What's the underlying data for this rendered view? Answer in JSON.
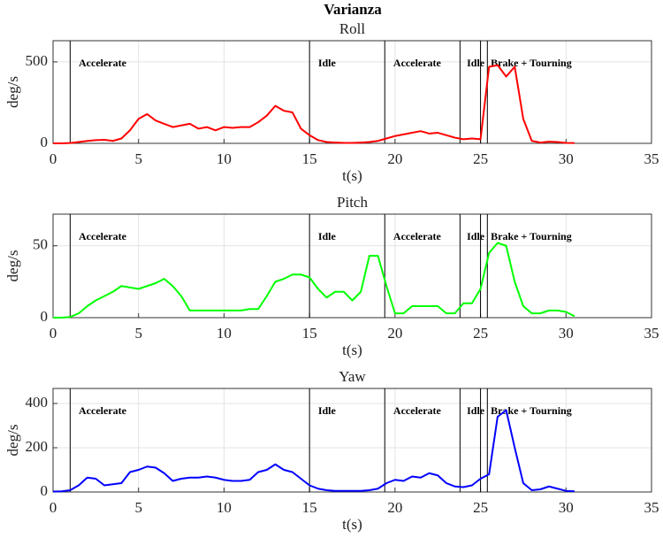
{
  "title": "Varianza",
  "chart_data": [
    {
      "type": "line",
      "title": "Roll",
      "xlabel": "t(s)",
      "ylabel": "deg/s",
      "x": [
        0,
        0.5,
        1,
        1.5,
        2,
        2.5,
        3,
        3.5,
        4,
        4.5,
        5,
        5.5,
        6,
        6.5,
        7,
        7.5,
        8,
        8.5,
        9,
        9.5,
        10,
        10.5,
        11,
        11.5,
        12,
        12.5,
        13,
        13.5,
        14,
        14.5,
        15,
        15.5,
        16,
        16.5,
        17,
        17.5,
        18,
        18.5,
        19,
        19.5,
        20,
        20.5,
        21,
        21.5,
        22,
        22.5,
        23,
        23.5,
        24,
        24.5,
        25,
        25.5,
        26,
        26.5,
        27,
        27.5,
        28,
        28.5,
        29,
        29.5,
        30,
        30.5
      ],
      "series": [
        {
          "color": "#ff0000",
          "values": [
            0,
            0,
            2,
            8,
            15,
            20,
            22,
            15,
            30,
            80,
            150,
            180,
            140,
            120,
            100,
            110,
            120,
            90,
            100,
            80,
            100,
            95,
            100,
            100,
            130,
            170,
            230,
            200,
            190,
            90,
            50,
            20,
            8,
            5,
            3,
            3,
            5,
            8,
            15,
            30,
            45,
            55,
            65,
            75,
            60,
            65,
            50,
            35,
            25,
            30,
            25,
            470,
            480,
            410,
            470,
            150,
            15,
            5,
            10,
            8,
            3,
            2
          ]
        }
      ],
      "xlim": [
        0,
        35
      ],
      "xticks": [
        0,
        5,
        10,
        15,
        20,
        25,
        30,
        35
      ],
      "ylim": [
        0,
        630
      ],
      "yticks": [
        0,
        500
      ],
      "grid": true,
      "vlines": [
        1,
        15,
        19.4,
        23.8,
        25,
        25.4
      ],
      "annotations": [
        {
          "text": "Accelerate",
          "x": 1.5
        },
        {
          "text": "Idle",
          "x": 15.5
        },
        {
          "text": "Accelerate",
          "x": 19.9
        },
        {
          "text": "Idle",
          "x": 24.2
        },
        {
          "text": "Brake + Tourning",
          "x": 25.6
        }
      ]
    },
    {
      "type": "line",
      "title": "Pitch",
      "xlabel": "t(s)",
      "ylabel": "deg/s",
      "x": [
        0,
        0.5,
        1,
        1.5,
        2,
        2.5,
        3,
        3.5,
        4,
        4.5,
        5,
        5.5,
        6,
        6.5,
        7,
        7.5,
        8,
        8.5,
        9,
        9.5,
        10,
        10.5,
        11,
        11.5,
        12,
        12.5,
        13,
        13.5,
        14,
        14.5,
        15,
        15.5,
        16,
        16.5,
        17,
        17.5,
        18,
        18.5,
        19,
        19.5,
        20,
        20.5,
        21,
        21.5,
        22,
        22.5,
        23,
        23.5,
        24,
        24.5,
        25,
        25.5,
        26,
        26.5,
        27,
        27.5,
        28,
        28.5,
        29,
        29.5,
        30,
        30.5
      ],
      "series": [
        {
          "color": "#00ff00",
          "values": [
            0,
            0,
            0.5,
            3,
            8,
            12,
            15,
            18,
            22,
            21,
            20,
            22,
            24,
            27,
            22,
            15,
            5,
            5,
            5,
            5,
            5,
            5,
            5,
            6,
            6,
            15,
            25,
            27,
            30,
            30,
            28,
            20,
            14,
            18,
            18,
            12,
            18,
            43,
            43,
            22,
            3,
            3,
            8,
            8,
            8,
            8,
            3,
            3,
            10,
            10,
            20,
            45,
            52,
            50,
            25,
            8,
            3,
            3,
            5,
            5,
            4,
            1
          ]
        }
      ],
      "xlim": [
        0,
        35
      ],
      "xticks": [
        0,
        5,
        10,
        15,
        20,
        25,
        30,
        35
      ],
      "ylim": [
        0,
        72
      ],
      "yticks": [
        0,
        50
      ],
      "grid": true,
      "vlines": [
        1,
        15,
        19.4,
        23.8,
        25,
        25.4
      ],
      "annotations": [
        {
          "text": "Accelerate",
          "x": 1.5
        },
        {
          "text": "Idle",
          "x": 15.5
        },
        {
          "text": "Accelerate",
          "x": 19.9
        },
        {
          "text": "Idle",
          "x": 24.2
        },
        {
          "text": "Brake + Tourning",
          "x": 25.6
        }
      ]
    },
    {
      "type": "line",
      "title": "Yaw",
      "xlabel": "t(s)",
      "ylabel": "deg/s",
      "x": [
        0,
        0.5,
        1,
        1.5,
        2,
        2.5,
        3,
        3.5,
        4,
        4.5,
        5,
        5.5,
        6,
        6.5,
        7,
        7.5,
        8,
        8.5,
        9,
        9.5,
        10,
        10.5,
        11,
        11.5,
        12,
        12.5,
        13,
        13.5,
        14,
        14.5,
        15,
        15.5,
        16,
        16.5,
        17,
        17.5,
        18,
        18.5,
        19,
        19.5,
        20,
        20.5,
        21,
        21.5,
        22,
        22.5,
        23,
        23.5,
        24,
        24.5,
        25,
        25.5,
        26,
        26.5,
        27,
        27.5,
        28,
        28.5,
        29,
        29.5,
        30,
        30.5
      ],
      "series": [
        {
          "color": "#0000ff",
          "values": [
            2,
            3,
            8,
            30,
            65,
            60,
            30,
            35,
            40,
            90,
            100,
            115,
            110,
            85,
            50,
            60,
            65,
            65,
            70,
            65,
            55,
            50,
            50,
            55,
            90,
            100,
            125,
            100,
            90,
            60,
            30,
            15,
            8,
            5,
            5,
            5,
            5,
            8,
            15,
            40,
            55,
            50,
            70,
            65,
            85,
            75,
            40,
            25,
            22,
            30,
            60,
            80,
            340,
            370,
            200,
            40,
            8,
            12,
            25,
            15,
            5,
            3
          ]
        }
      ],
      "xlim": [
        0,
        35
      ],
      "xticks": [
        0,
        5,
        10,
        15,
        20,
        25,
        30,
        35
      ],
      "ylim": [
        0,
        468
      ],
      "yticks": [
        0,
        200,
        400
      ],
      "grid": true,
      "vlines": [
        1,
        15,
        19.4,
        23.8,
        25,
        25.4
      ],
      "annotations": [
        {
          "text": "Accelerate",
          "x": 1.5
        },
        {
          "text": "Idle",
          "x": 15.5
        },
        {
          "text": "Accelerate",
          "x": 19.9
        },
        {
          "text": "Idle",
          "x": 24.2
        },
        {
          "text": "Brake + Tourning",
          "x": 25.6
        }
      ]
    }
  ]
}
